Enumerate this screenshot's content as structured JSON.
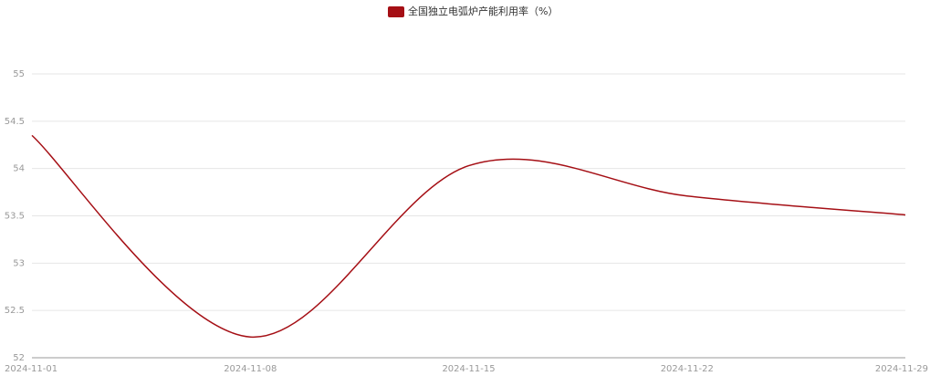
{
  "chart_data": {
    "type": "line",
    "legend": "全国独立电弧炉产能利用率（%）",
    "categories": [
      "2024-11-01",
      "2024-11-08",
      "2024-11-15",
      "2024-11-22",
      "2024-11-29"
    ],
    "series": [
      {
        "name": "全国独立电弧炉产能利用率（%）",
        "color": "#a50f15",
        "values": [
          54.35,
          52.22,
          54.03,
          53.71,
          53.51
        ]
      }
    ],
    "ylim": [
      52,
      55
    ],
    "yticks": [
      52,
      52.5,
      53,
      53.5,
      54,
      54.5,
      55
    ],
    "grid": true,
    "smooth": true
  }
}
